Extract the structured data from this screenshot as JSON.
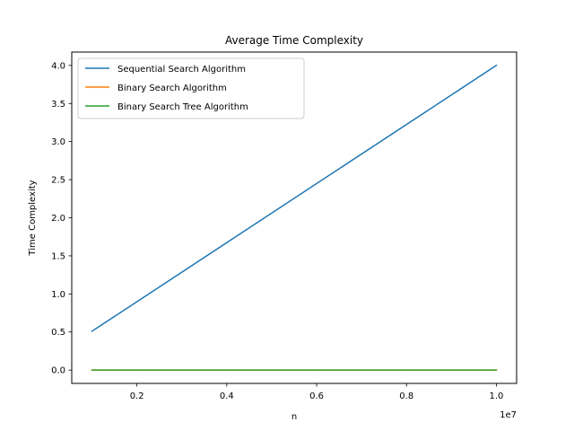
{
  "chart_data": {
    "type": "line",
    "title": "Average Time Complexity",
    "xlabel": "n",
    "ylabel": "Time Complexity",
    "x_offset_label": "1e7",
    "x_scale": 10000000,
    "x": [
      1000000,
      10000000
    ],
    "xlim": [
      550000,
      10450000
    ],
    "ylim": [
      -0.175,
      4.175
    ],
    "xticks": [
      2000000,
      4000000,
      6000000,
      8000000,
      10000000
    ],
    "xtick_labels": [
      "0.2",
      "0.4",
      "0.6",
      "0.8",
      "1.0"
    ],
    "yticks": [
      0.0,
      0.5,
      1.0,
      1.5,
      2.0,
      2.5,
      3.0,
      3.5,
      4.0
    ],
    "ytick_labels": [
      "0.0",
      "0.5",
      "1.0",
      "1.5",
      "2.0",
      "2.5",
      "3.0",
      "3.5",
      "4.0"
    ],
    "grid": false,
    "legend_position": "top-left",
    "series": [
      {
        "name": "Sequential Search Algorithm",
        "color": "#1f77b4",
        "values": [
          0.51,
          4.0
        ]
      },
      {
        "name": "Binary Search Algorithm",
        "color": "#ff7f0e",
        "values": [
          0.0,
          0.0
        ]
      },
      {
        "name": "Binary Search Tree Algorithm",
        "color": "#2ca02c",
        "values": [
          0.0,
          0.0
        ]
      }
    ]
  }
}
